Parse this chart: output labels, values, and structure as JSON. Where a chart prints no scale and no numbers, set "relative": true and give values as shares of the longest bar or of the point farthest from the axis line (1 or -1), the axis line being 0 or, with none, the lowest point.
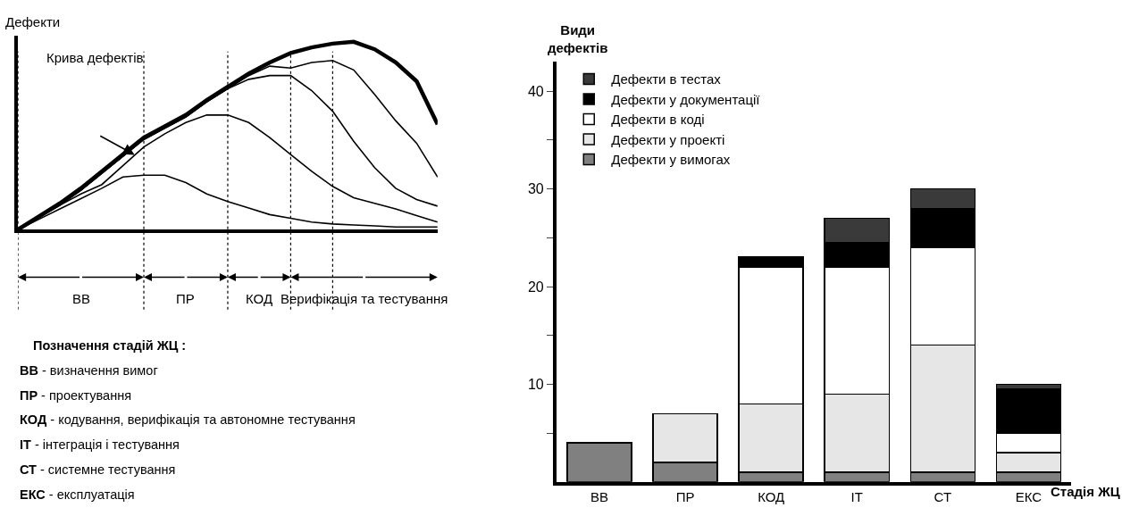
{
  "chart_data": [
    {
      "type": "line",
      "relative": true,
      "ylabel": "Дефекти",
      "tick_labels": false,
      "marker": "none",
      "categories": [
        null,
        null,
        null,
        null,
        null,
        null,
        null,
        null,
        null,
        null,
        null,
        null,
        null,
        null,
        null,
        null,
        null,
        null,
        null,
        null,
        null
      ],
      "series": [
        {
          "color": "#000000",
          "values": [
            0,
            0.07,
            0.14,
            0.22,
            0.31,
            0.4,
            0.49,
            0.55,
            0.61,
            0.69,
            0.76,
            0.83,
            0.89,
            0.94,
            0.97,
            0.99,
            1.0,
            0.96,
            0.89,
            0.79,
            0.56
          ]
        },
        {
          "color": "#000000",
          "values": [
            0,
            0.065,
            0.13,
            0.21,
            0.3,
            0.39,
            0.48,
            0.54,
            0.6,
            0.68,
            0.75,
            0.82,
            0.87,
            0.86,
            0.89,
            0.9,
            0.85,
            0.72,
            0.58,
            0.46,
            0.28
          ]
        },
        {
          "color": "#000000",
          "values": [
            0,
            0.065,
            0.13,
            0.21,
            0.3,
            0.39,
            0.48,
            0.54,
            0.6,
            0.68,
            0.75,
            0.8,
            0.82,
            0.82,
            0.74,
            0.63,
            0.47,
            0.33,
            0.22,
            0.16,
            0.125
          ]
        },
        {
          "color": "#000000",
          "values": [
            0,
            0.065,
            0.13,
            0.19,
            0.24,
            0.34,
            0.44,
            0.51,
            0.57,
            0.61,
            0.61,
            0.57,
            0.49,
            0.4,
            0.31,
            0.23,
            0.17,
            0.14,
            0.11,
            0.075,
            0.04
          ]
        },
        {
          "color": "#000000",
          "values": [
            0,
            0.055,
            0.11,
            0.165,
            0.22,
            0.28,
            0.29,
            0.29,
            0.25,
            0.19,
            0.15,
            0.115,
            0.08,
            0.06,
            0.04,
            0.03,
            0.025,
            0.02,
            0.014,
            0.014,
            0.014
          ]
        }
      ],
      "annotations": [
        "Крива дефектів",
        "ВВ",
        "ПР",
        "КОД",
        "Верифікація та тестування",
        "Позначення стадій ЖЦ :",
        "ВВ - визначення вимог",
        "ПР - проектування",
        "КОД - кодування, верифікація та автономне тестування",
        "ІТ - інтеграція і тестування",
        "СТ - системне тестування",
        "ЕКС - експлуатація"
      ]
    },
    {
      "type": "bar",
      "stacked": true,
      "ylabel": "Види дефектів",
      "xlabel": "Стадія ЖЦ",
      "categories": [
        "ВВ",
        "ПР",
        "КОД",
        "ІТ",
        "СТ",
        "ЕКС"
      ],
      "ylim": [
        0,
        43
      ],
      "yticks": [
        {
          "value": 5,
          "label": null
        },
        10,
        {
          "value": 15,
          "label": null
        },
        20,
        {
          "value": 25,
          "label": null
        },
        30,
        {
          "value": 35,
          "label": null
        },
        40
      ],
      "legend": "top left",
      "series": [
        {
          "name": "Дефекти у вимогах",
          "color": "#808080",
          "values": [
            4,
            2,
            1,
            1,
            1,
            1
          ]
        },
        {
          "name": "Дефекти у проекті",
          "color": "#e6e6e6",
          "values": [
            null,
            5,
            7,
            8,
            13,
            2
          ]
        },
        {
          "name": "Дефекти в коді",
          "color": "#ffffff",
          "values": [
            null,
            null,
            14,
            13,
            10,
            2
          ]
        },
        {
          "name": "Дефекти у документації",
          "color": "#000000",
          "values": [
            null,
            null,
            1,
            2.5,
            4,
            4.5
          ]
        },
        {
          "name": "Дефекти в тестах",
          "color": "#3a3a3a",
          "values": [
            null,
            null,
            null,
            2.5,
            2,
            0.5
          ]
        }
      ]
    }
  ]
}
